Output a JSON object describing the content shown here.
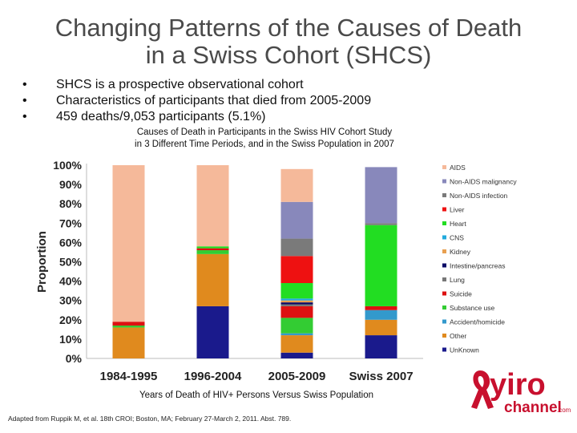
{
  "slide": {
    "title_line1": "Changing Patterns of the Causes of Death",
    "title_line2": "in a Swiss Cohort (SHCS)",
    "bullets": [
      "SHCS is a prospective observational cohort",
      "Characteristics of participants that died from 2005-2009",
      "459 deaths/9,053 participants (5.1%)"
    ],
    "footnote": "Adapted from Ruppik M, et al. 18th CROI; Boston, MA; February 27-March 2, 2011. Abst. 789.",
    "logo": {
      "text_main": "yiro",
      "text_sub": "channel",
      "text_suffix": ".com"
    }
  },
  "chart_data": {
    "type": "bar",
    "stacked": true,
    "title_line1": "Causes of Death in Participants in the Swiss HIV Cohort Study",
    "title_line2": "in 3 Different Time Periods, and in the Swiss Population in 2007",
    "xlabel": "Years of Death of HIV+ Persons Versus Swiss Population",
    "ylabel": "Proportion",
    "ylim": [
      0,
      100
    ],
    "yticks": [
      "0%",
      "10%",
      "20%",
      "30%",
      "40%",
      "50%",
      "60%",
      "70%",
      "80%",
      "90%",
      "100%"
    ],
    "categories": [
      "1984-1995",
      "1996-2004",
      "2005-2009",
      "Swiss 2007"
    ],
    "legend_position": "right",
    "series": [
      {
        "name": "UnKnown",
        "color": "#1a1a8c",
        "values": [
          0,
          27,
          3,
          12
        ]
      },
      {
        "name": "Other",
        "color": "#e08a1e",
        "values": [
          16,
          27,
          9,
          8
        ]
      },
      {
        "name": "Accident/homicide",
        "color": "#3399cc",
        "values": [
          0,
          0,
          1,
          5
        ]
      },
      {
        "name": "Substance use",
        "color": "#33cc33",
        "values": [
          1,
          2,
          8,
          0
        ]
      },
      {
        "name": "Suicide",
        "color": "#dd1111",
        "values": [
          2,
          1,
          6,
          2
        ]
      },
      {
        "name": "Lung",
        "color": "#777777",
        "values": [
          0,
          0,
          1,
          0
        ]
      },
      {
        "name": "Intestine/pancreas",
        "color": "#0a0a66",
        "values": [
          0,
          0,
          1,
          0
        ]
      },
      {
        "name": "Kidney",
        "color": "#e8a050",
        "values": [
          0,
          0,
          1,
          0
        ]
      },
      {
        "name": "CNS",
        "color": "#22aadd",
        "values": [
          0,
          0,
          1,
          0
        ]
      },
      {
        "name": "Heart",
        "color": "#22dd22",
        "values": [
          0,
          1,
          8,
          42
        ]
      },
      {
        "name": "Liver",
        "color": "#ee1111",
        "values": [
          0,
          0,
          14,
          0
        ]
      },
      {
        "name": "Non-AIDS infection",
        "color": "#7a7a7a",
        "values": [
          0,
          0,
          9,
          1
        ]
      },
      {
        "name": "Non-AIDS malignancy",
        "color": "#8888bb",
        "values": [
          0,
          0,
          19,
          29
        ]
      },
      {
        "name": "AIDS",
        "color": "#f5b99a",
        "values": [
          81,
          42,
          17,
          0
        ]
      }
    ],
    "legend_order": [
      "AIDS",
      "Non-AIDS malignancy",
      "Non-AIDS infection",
      "Liver",
      "Heart",
      "CNS",
      "Kidney",
      "Intestine/pancreas",
      "Lung",
      "Suicide",
      "Substance use",
      "Accident/homicide",
      "Other",
      "UnKnown"
    ]
  }
}
